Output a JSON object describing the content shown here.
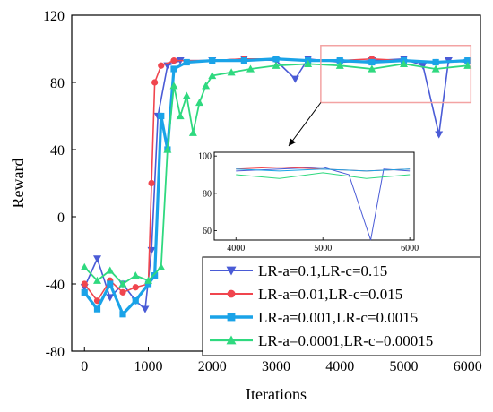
{
  "chart_data": {
    "type": "line",
    "xlabel": "Iterations",
    "ylabel": "Reward",
    "xlim": [
      -200,
      6200
    ],
    "ylim": [
      -80,
      120
    ],
    "xticks": [
      0,
      1000,
      2000,
      3000,
      4000,
      5000,
      6000
    ],
    "yticks": [
      -80,
      -40,
      0,
      40,
      80,
      120
    ],
    "legend_position": "bottom-right",
    "series": [
      {
        "name": "LR-a=0.1,LR-c=0.15",
        "color": "#4a5bd6",
        "marker": "triangle-down",
        "x": [
          0,
          200,
          400,
          600,
          800,
          950,
          1050,
          1150,
          1300,
          1500,
          2000,
          2500,
          3000,
          3300,
          3500,
          4000,
          4500,
          5000,
          5300,
          5550,
          5700,
          6000
        ],
        "y": [
          -42,
          -25,
          -48,
          -40,
          -50,
          -55,
          -20,
          60,
          90,
          93,
          93,
          94,
          93,
          82,
          94,
          92,
          93,
          94,
          90,
          49,
          93,
          92
        ]
      },
      {
        "name": "LR-a=0.01,LR-c=0.015",
        "color": "#f0454e",
        "marker": "circle",
        "x": [
          0,
          200,
          400,
          600,
          800,
          1000,
          1050,
          1100,
          1200,
          1400,
          2000,
          2500,
          3000,
          3500,
          4000,
          4500,
          5000,
          5500,
          6000
        ],
        "y": [
          -40,
          -50,
          -38,
          -45,
          -42,
          -40,
          20,
          80,
          90,
          93,
          93,
          94,
          94,
          93,
          93,
          94,
          93,
          92,
          93
        ]
      },
      {
        "name": "LR-a=0.001,LR-c=0.0015",
        "color": "#1aa3e8",
        "marker": "square",
        "x": [
          0,
          200,
          400,
          600,
          800,
          1000,
          1100,
          1200,
          1300,
          1400,
          1600,
          2000,
          2500,
          3000,
          3500,
          4000,
          4500,
          5000,
          5500,
          6000
        ],
        "y": [
          -45,
          -55,
          -40,
          -58,
          -50,
          -40,
          -35,
          60,
          40,
          88,
          92,
          93,
          93,
          94,
          93,
          93,
          92,
          93,
          92,
          93
        ]
      },
      {
        "name": "LR-a=0.0001,LR-c=0.00015",
        "color": "#2fd97f",
        "marker": "triangle-up",
        "x": [
          0,
          200,
          400,
          600,
          800,
          1000,
          1200,
          1300,
          1400,
          1500,
          1600,
          1700,
          1800,
          1900,
          2000,
          2300,
          2600,
          3000,
          3500,
          4000,
          4500,
          5000,
          5500,
          6000
        ],
        "y": [
          -30,
          -38,
          -32,
          -40,
          -35,
          -38,
          -30,
          40,
          78,
          60,
          72,
          50,
          68,
          78,
          84,
          86,
          88,
          90,
          91,
          90,
          88,
          91,
          88,
          90
        ]
      }
    ],
    "inset": {
      "xlim": [
        3750,
        6050
      ],
      "ylim": [
        55,
        102
      ],
      "xticks": [
        4000,
        5000,
        6000
      ],
      "yticks": [
        60,
        80,
        100
      ]
    }
  }
}
